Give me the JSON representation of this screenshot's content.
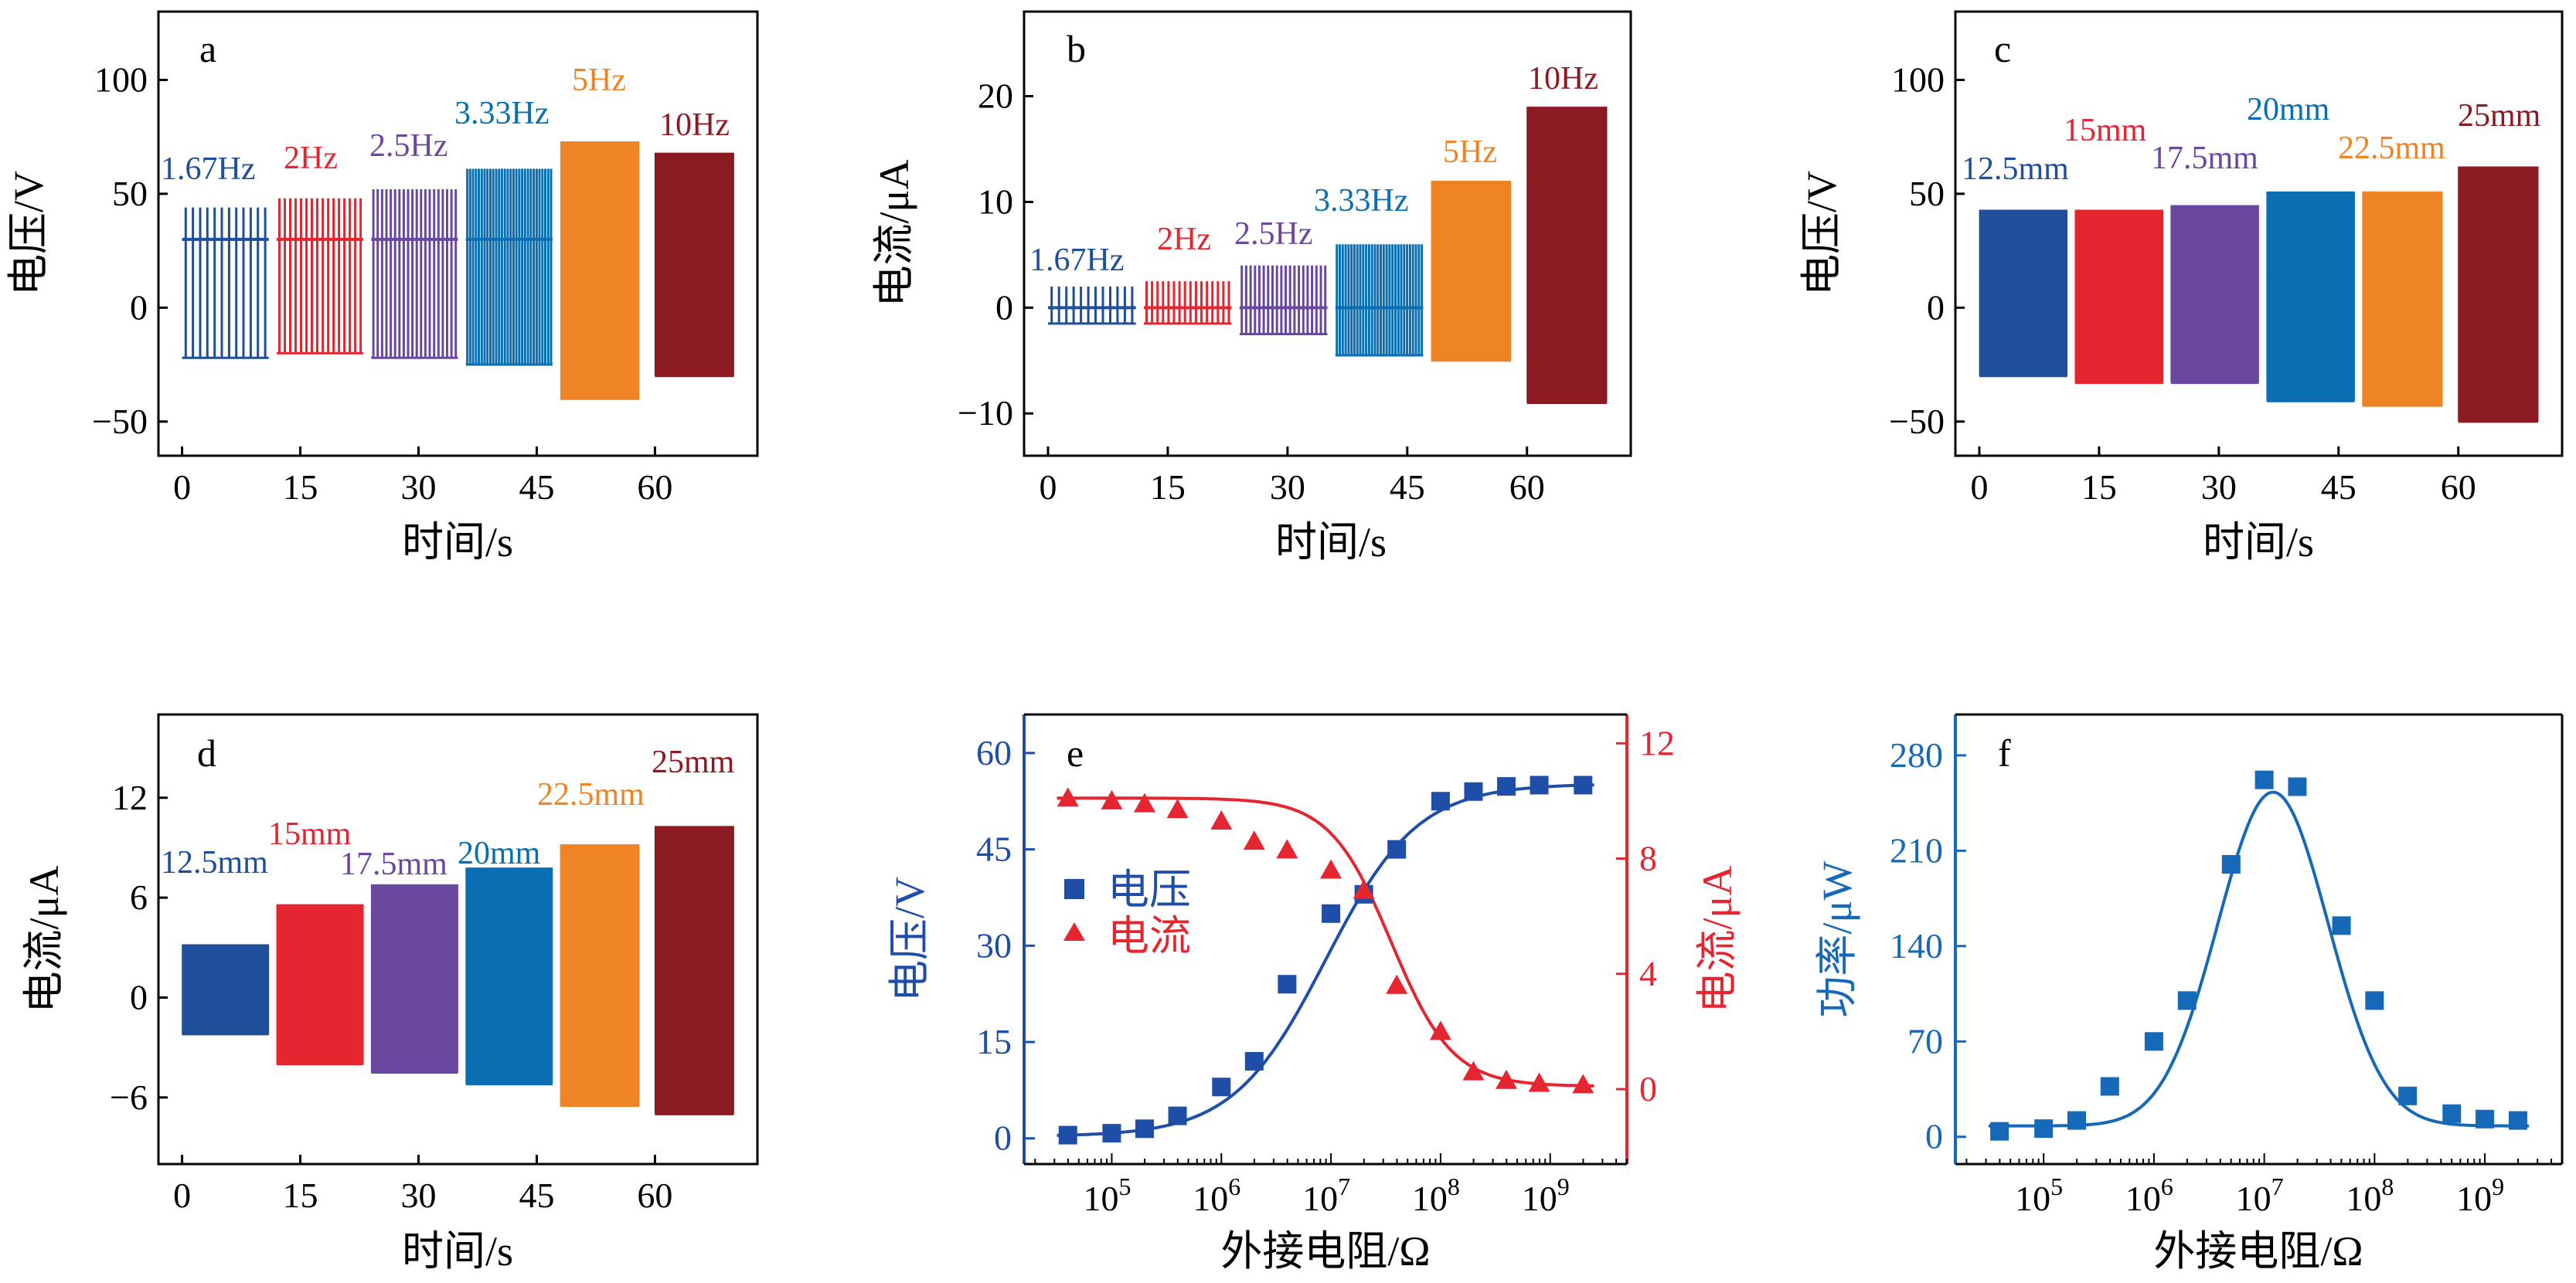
{
  "colors": {
    "c1": "#1f4e9a",
    "c2": "#e5252f",
    "c3": "#6a48a0",
    "c4": "#0a6fb2",
    "c5": "#ef8427",
    "c6": "#8b1a22",
    "blue": "#1f4ea8",
    "red": "#e5252f",
    "fblue": "#1668b8"
  },
  "chart_data": [
    {
      "panel": "a",
      "type": "line",
      "xlabel": "时间/s",
      "ylabel": "电压/V",
      "xlim": [
        -3,
        73
      ],
      "ylim": [
        -65,
        130
      ],
      "xticks": [
        "0",
        "15",
        "30",
        "45",
        "60"
      ],
      "yticks": [
        "-50",
        "0",
        "50",
        "100"
      ],
      "segments": [
        {
          "label": "1.67Hz",
          "t": [
            0,
            11
          ],
          "pos": 44,
          "neg": -22,
          "base": 30,
          "count": 12
        },
        {
          "label": "2Hz",
          "t": [
            12,
            23
          ],
          "pos": 48,
          "neg": -20,
          "base": 30,
          "count": 16
        },
        {
          "label": "2.5Hz",
          "t": [
            24,
            35
          ],
          "pos": 52,
          "neg": -22,
          "base": 30,
          "count": 20
        },
        {
          "label": "3.33Hz",
          "t": [
            36,
            47
          ],
          "pos": 61,
          "neg": -25,
          "base": 30,
          "count": 30
        },
        {
          "label": "5Hz",
          "t": [
            48,
            58
          ],
          "pos": 73,
          "neg": -40,
          "base": 30,
          "count": 60
        },
        {
          "label": "10Hz",
          "t": [
            60,
            70
          ],
          "pos": 68,
          "neg": -30,
          "base": 30,
          "count": 100
        }
      ]
    },
    {
      "panel": "b",
      "type": "line",
      "xlabel": "时间/s",
      "ylabel": "电流/μA",
      "xlim": [
        -3,
        73
      ],
      "ylim": [
        -14,
        28
      ],
      "xticks": [
        "0",
        "15",
        "30",
        "45",
        "60"
      ],
      "yticks": [
        "-10",
        "0",
        "10",
        "20"
      ],
      "segments": [
        {
          "label": "1.67Hz",
          "t": [
            0,
            11
          ],
          "pos": 2,
          "neg": -1.5,
          "base": 0,
          "count": 12
        },
        {
          "label": "2Hz",
          "t": [
            12,
            23
          ],
          "pos": 2.5,
          "neg": -1.5,
          "base": 0,
          "count": 16
        },
        {
          "label": "2.5Hz",
          "t": [
            24,
            35
          ],
          "pos": 4,
          "neg": -2.5,
          "base": 0,
          "count": 20
        },
        {
          "label": "3.33Hz",
          "t": [
            36,
            47
          ],
          "pos": 6,
          "neg": -4.5,
          "base": 0,
          "count": 30
        },
        {
          "label": "5Hz",
          "t": [
            48,
            58
          ],
          "pos": 12,
          "neg": -5,
          "base": 0,
          "count": 60
        },
        {
          "label": "10Hz",
          "t": [
            60,
            70
          ],
          "pos": 19,
          "neg": -9,
          "base": 0,
          "count": 100
        }
      ]
    },
    {
      "panel": "c",
      "type": "line",
      "xlabel": "时间/s",
      "ylabel": "电压/V",
      "xlim": [
        -3,
        73
      ],
      "ylim": [
        -65,
        130
      ],
      "xticks": [
        "0",
        "15",
        "30",
        "45",
        "60"
      ],
      "yticks": [
        "-50",
        "0",
        "50",
        "100"
      ],
      "segments": [
        {
          "label": "12.5mm",
          "t": [
            0,
            11
          ],
          "pos": 43,
          "neg": -30,
          "base": 15,
          "count": 100
        },
        {
          "label": "15mm",
          "t": [
            12,
            23
          ],
          "pos": 43,
          "neg": -33,
          "base": 15,
          "count": 100
        },
        {
          "label": "17.5mm",
          "t": [
            24,
            35
          ],
          "pos": 45,
          "neg": -33,
          "base": 15,
          "count": 100
        },
        {
          "label": "20mm",
          "t": [
            36,
            47
          ],
          "pos": 51,
          "neg": -41,
          "base": 15,
          "count": 100
        },
        {
          "label": "22.5mm",
          "t": [
            48,
            58
          ],
          "pos": 51,
          "neg": -43,
          "base": 15,
          "count": 100
        },
        {
          "label": "25mm",
          "t": [
            60,
            70
          ],
          "pos": 62,
          "neg": -50,
          "base": 15,
          "count": 100
        }
      ]
    },
    {
      "panel": "d",
      "type": "line",
      "xlabel": "时间/s",
      "ylabel": "电流/μA",
      "xlim": [
        -3,
        73
      ],
      "ylim": [
        -10,
        17
      ],
      "xticks": [
        "0",
        "15",
        "30",
        "45",
        "60"
      ],
      "yticks": [
        "-6",
        "0",
        "6",
        "12"
      ],
      "segments": [
        {
          "label": "12.5mm",
          "t": [
            0,
            11
          ],
          "pos": 3.2,
          "neg": -2.2,
          "base": 0,
          "count": 100
        },
        {
          "label": "15mm",
          "t": [
            12,
            23
          ],
          "pos": 5.6,
          "neg": -4,
          "base": 0,
          "count": 100
        },
        {
          "label": "17.5mm",
          "t": [
            24,
            35
          ],
          "pos": 6.8,
          "neg": -4.5,
          "base": 0,
          "count": 100
        },
        {
          "label": "20mm",
          "t": [
            36,
            47
          ],
          "pos": 7.8,
          "neg": -5.2,
          "base": 0,
          "count": 100
        },
        {
          "label": "22.5mm",
          "t": [
            48,
            58
          ],
          "pos": 9.2,
          "neg": -6.5,
          "base": 0,
          "count": 100
        },
        {
          "label": "25mm",
          "t": [
            60,
            70
          ],
          "pos": 10.3,
          "neg": -7,
          "base": -3,
          "count": 100
        }
      ]
    },
    {
      "panel": "e",
      "type": "scatter",
      "xlabel": "外接电阻/Ω",
      "ylabel": "电压/V",
      "ylabel_right": "电流/μA",
      "xscale": "log",
      "xlim_log10": [
        4.2,
        9.7
      ],
      "ylim": [
        -4,
        66
      ],
      "ylim_right": [
        -2.6,
        13
      ],
      "xticks": [
        {
          "base": "10",
          "exp": "5"
        },
        {
          "base": "10",
          "exp": "6"
        },
        {
          "base": "10",
          "exp": "7"
        },
        {
          "base": "10",
          "exp": "8"
        },
        {
          "base": "10",
          "exp": "9"
        }
      ],
      "yticks": [
        "0",
        "15",
        "30",
        "45",
        "60"
      ],
      "yticks_right": [
        "0",
        "4",
        "8",
        "12"
      ],
      "legend": [
        "电压",
        "电流"
      ],
      "x_log10": [
        4.6,
        5.0,
        5.3,
        5.6,
        6.0,
        6.3,
        6.6,
        7.0,
        7.3,
        7.6,
        8.0,
        8.3,
        8.6,
        8.9,
        9.3
      ],
      "series": [
        {
          "name": "电压",
          "values": [
            0.5,
            0.8,
            1.5,
            3.5,
            8,
            12,
            24,
            35,
            38,
            45,
            52.5,
            54,
            54.8,
            55,
            55
          ]
        },
        {
          "name": "电流",
          "values": [
            10.1,
            10,
            9.9,
            9.7,
            9.3,
            8.6,
            8.3,
            7.6,
            6.9,
            3.6,
            2,
            0.6,
            0.3,
            0.2,
            0.15
          ]
        }
      ]
    },
    {
      "panel": "f",
      "type": "scatter",
      "xlabel": "外接电阻/Ω",
      "ylabel": "功率/μW",
      "xscale": "log",
      "xlim_log10": [
        4.2,
        9.7
      ],
      "ylim": [
        -20,
        310
      ],
      "xticks": [
        {
          "base": "10",
          "exp": "5"
        },
        {
          "base": "10",
          "exp": "6"
        },
        {
          "base": "10",
          "exp": "7"
        },
        {
          "base": "10",
          "exp": "8"
        },
        {
          "base": "10",
          "exp": "9"
        }
      ],
      "yticks": [
        "0",
        "70",
        "140",
        "210",
        "280"
      ],
      "x_log10": [
        4.6,
        5.0,
        5.3,
        5.6,
        6.0,
        6.3,
        6.7,
        7.0,
        7.3,
        7.7,
        8.0,
        8.3,
        8.7,
        9.0,
        9.3
      ],
      "values": [
        4,
        6,
        12,
        37,
        70,
        100,
        200,
        262,
        257,
        155,
        100,
        30,
        17,
        13,
        12
      ]
    }
  ]
}
